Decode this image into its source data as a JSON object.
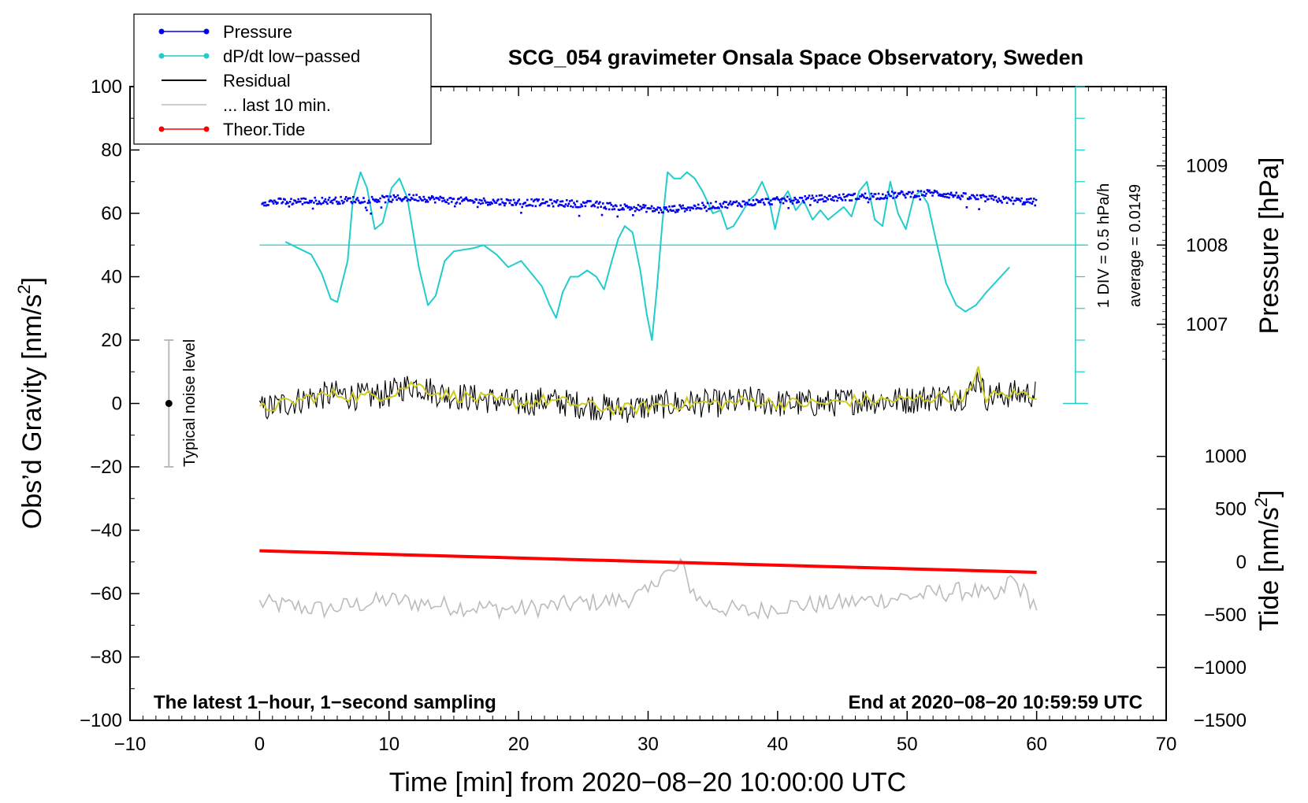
{
  "chart_data": {
    "type": "line",
    "title": "SCG_054 gravimeter Onsala Space Observatory, Sweden",
    "xlabel": "Time [min] from 2020−08−20 10:00:00 UTC",
    "ylabel_left": "Obs’d Gravity [nm/s",
    "ylabel_left_sup": "2",
    "ylabel_left_close": "]",
    "ylabel_right_pressure": "Pressure [hPa]",
    "ylabel_right_tide": "Tide [nm/s",
    "ylabel_right_tide_sup": "2",
    "ylabel_right_tide_close": "]",
    "xlim": [
      -10,
      70
    ],
    "ylim": [
      -100,
      100
    ],
    "x_ticks": [
      "−10",
      "0",
      "10",
      "20",
      "30",
      "40",
      "50",
      "60",
      "70"
    ],
    "y_ticks": [
      "−100",
      "−80",
      "−60",
      "−40",
      "−20",
      "0",
      "20",
      "40",
      "60",
      "80",
      "100"
    ],
    "pressure_axis": {
      "ticks": [
        "1007",
        "1008",
        "1009"
      ],
      "values": [
        1007,
        1008,
        1009
      ],
      "gravity_at": [
        25,
        50,
        75
      ]
    },
    "tide_axis": {
      "ticks": [
        "1000",
        "500",
        "0",
        "−500",
        "−1000",
        "−1500"
      ],
      "values": [
        1000,
        500,
        0,
        -500,
        -1000,
        -1500
      ],
      "gravity_at": [
        -16.7,
        -33.3,
        -50,
        -66.7,
        -83.3,
        -100
      ]
    },
    "legend": [
      {
        "label": "Pressure",
        "color": "#0000ee",
        "marker": true
      },
      {
        "label": "dP/dt low−passed",
        "color": "#22cccc",
        "marker": true
      },
      {
        "label": "Residual",
        "color": "#000000",
        "marker": false
      },
      {
        "label": "... last 10 min.",
        "color": "#bbbbbb",
        "marker": false
      },
      {
        "label": "Theor.Tide",
        "color": "#ff0000",
        "marker": true
      }
    ],
    "annotations": {
      "bottom_left": "The latest 1−hour, 1−second sampling",
      "bottom_right": "End at 2020−08−20 10:59:59 UTC",
      "dpdt_scale": "1 DIV = 0.5 hPa/h",
      "dpdt_average": "average = 0.0149",
      "noise_label": "Typical noise level"
    },
    "noise_bar": {
      "x": -7,
      "y_center": 0,
      "y_range": [
        -20,
        20
      ]
    },
    "dpdt_scale_axis": {
      "x": 63,
      "y_range": [
        0,
        100
      ],
      "zero_y": 50
    },
    "series": [
      {
        "name": "Pressure (plotted on gravity scale)",
        "color": "#0000ee",
        "x": [
          0,
          5,
          10,
          12,
          15,
          20,
          25,
          28,
          30,
          31,
          35,
          40,
          45,
          50,
          52,
          55,
          60
        ],
        "y": [
          63.5,
          64,
          64.5,
          65,
          64,
          63.5,
          63,
          62,
          61.5,
          61,
          62.5,
          64,
          65,
          66,
          66.5,
          65,
          63.5
        ]
      },
      {
        "name": "dP/dt low-passed",
        "color": "#22cccc",
        "x": [
          2,
          3,
          4,
          4.8,
          5.5,
          6,
          6.8,
          7.2,
          7.8,
          8.3,
          8.9,
          9.5,
          10.2,
          10.8,
          11.4,
          12.3,
          13.0,
          13.6,
          14.3,
          15.0,
          15.7,
          16.5,
          17.3,
          18.3,
          19.2,
          20.2,
          21.0,
          21.8,
          22.4,
          22.9,
          23.4,
          24.0,
          24.6,
          25.3,
          26.0,
          26.6,
          27.2,
          27.7,
          28.2,
          28.8,
          29.4,
          29.9,
          30.3,
          30.7,
          31.1,
          31.5,
          32.0,
          32.5,
          33.0,
          33.6,
          34.2,
          35.0,
          35.6,
          36.1,
          36.6,
          37.2,
          37.8,
          38.3,
          38.8,
          39.3,
          39.8,
          40.3,
          40.8,
          41.4,
          42.0,
          42.7,
          43.3,
          43.9,
          44.5,
          45.1,
          45.7,
          46.3,
          46.9,
          47.5,
          48.1,
          48.7,
          49.3,
          49.9,
          50.5,
          51.0,
          51.6,
          52.2,
          53.0,
          53.8,
          54.5,
          55.3,
          56.1,
          57.0,
          57.9
        ],
        "y": [
          51,
          49,
          47,
          41,
          33,
          32,
          45,
          64,
          73,
          68,
          55,
          57,
          68,
          71,
          65,
          43,
          31,
          34,
          45,
          48,
          48.5,
          49,
          50,
          47,
          43,
          45,
          41,
          37,
          31,
          27,
          35,
          40,
          40,
          42,
          40,
          36,
          45,
          52,
          56,
          54,
          42,
          28,
          20,
          37,
          57,
          73,
          71,
          71,
          73,
          71,
          67,
          60,
          61,
          55,
          56,
          60,
          64,
          66,
          70,
          65,
          55,
          64,
          67,
          61,
          64,
          58,
          61,
          58,
          60,
          62,
          59,
          67,
          70,
          58,
          56,
          70,
          60,
          55,
          65,
          67,
          63,
          52,
          38,
          31,
          29,
          31,
          35,
          39,
          43
        ]
      },
      {
        "name": "Residual (smoothed trace shown yellow)",
        "color": "#000000",
        "x": [
          0,
          2,
          4,
          6,
          8,
          10,
          11,
          12,
          14,
          16,
          18,
          20,
          22,
          24,
          26,
          28,
          30,
          32,
          34,
          36,
          38,
          40,
          42,
          44,
          46,
          48,
          50,
          52,
          54,
          55,
          55.5,
          56,
          58,
          60
        ],
        "y": [
          -2,
          0,
          2,
          3,
          2,
          3,
          5,
          6,
          3,
          2,
          1,
          0,
          1,
          0,
          -1,
          -2,
          -1,
          0,
          0,
          0,
          1,
          0,
          0,
          0,
          1,
          1,
          1,
          2,
          2,
          4,
          10,
          2,
          3,
          3
        ]
      },
      {
        "name": "Theor.Tide (plotted on gravity scale)",
        "color": "#ff0000",
        "x": [
          0,
          60
        ],
        "y": [
          -46.5,
          -53.3
        ]
      },
      {
        "name": "... last 10 min. (residual replay)",
        "color": "#bbbbbb",
        "x": [
          0,
          5,
          10,
          15,
          20,
          25,
          28,
          30,
          31,
          32,
          32.5,
          33,
          34,
          35,
          38,
          40,
          45,
          50,
          52,
          55,
          57,
          58,
          60
        ],
        "y": [
          -63,
          -65,
          -62,
          -64,
          -65,
          -63,
          -62,
          -60,
          -53,
          -54,
          -50,
          -56,
          -62,
          -64,
          -66,
          -64,
          -63,
          -61,
          -60,
          -59,
          -62,
          -55,
          -64
        ]
      }
    ]
  }
}
